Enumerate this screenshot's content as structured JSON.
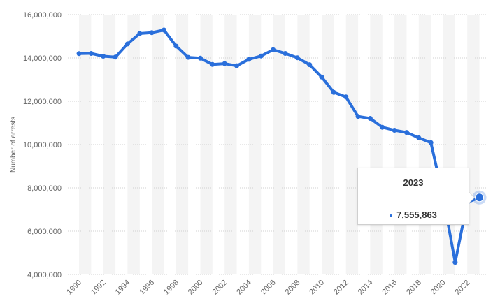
{
  "colors": {
    "line": "#2a6fdb",
    "band": "#f4f4f4",
    "grid": "#d0d0d0",
    "text": "#666666"
  },
  "chart_data": {
    "type": "line",
    "ylabel": "Number of arrests",
    "ylim": [
      4000000,
      16000000
    ],
    "y_ticks": [
      "4,000,000",
      "6,000,000",
      "8,000,000",
      "10,000,000",
      "12,000,000",
      "14,000,000",
      "16,000,000"
    ],
    "x_ticks": [
      "1990",
      "1992",
      "1994",
      "1996",
      "1998",
      "2000",
      "2002",
      "2004",
      "2006",
      "2008",
      "2010",
      "2012",
      "2014",
      "2016",
      "2018",
      "2020",
      "2022"
    ],
    "grid": "horizontal dotted, alternating vertical bands",
    "series": [
      {
        "x": [
          1990,
          1991,
          1992,
          1993,
          1994,
          1995,
          1996,
          1997,
          1998,
          1999,
          2000,
          2001,
          2002,
          2003,
          2004,
          2005,
          2006,
          2007,
          2008,
          2009,
          2010,
          2011,
          2012,
          2013,
          2014,
          2015,
          2016,
          2017,
          2018,
          2019,
          2020,
          2021,
          2022,
          2023
        ],
        "values": [
          14200000,
          14210000,
          14080000,
          14040000,
          14650000,
          15130000,
          15170000,
          15290000,
          14550000,
          14030000,
          13990000,
          13700000,
          13740000,
          13640000,
          13940000,
          14090000,
          14380000,
          14210000,
          14010000,
          13690000,
          13120000,
          12410000,
          12200000,
          11300000,
          11210000,
          10800000,
          10660000,
          10560000,
          10310000,
          10090000,
          7620000,
          4560000,
          7330000,
          7555863
        ]
      }
    ],
    "tooltip": {
      "title": "2023",
      "value": "7,555,863"
    }
  }
}
